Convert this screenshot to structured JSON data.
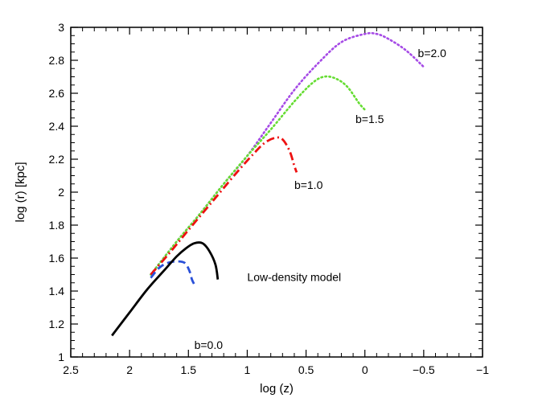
{
  "chart_data": {
    "type": "line",
    "title": "",
    "xlabel": "log (z)",
    "ylabel": "log (r) [kpc]",
    "xlim": [
      2.5,
      -1
    ],
    "ylim": [
      1,
      3
    ],
    "x_reversed": true,
    "x_ticks": [
      2.5,
      2,
      1.5,
      1,
      0.5,
      0,
      -0.5,
      -1
    ],
    "x_tick_labels": [
      "2.5",
      "2",
      "1.5",
      "1",
      "0.5",
      "0",
      "−0.5",
      "−1"
    ],
    "y_ticks": [
      1,
      1.2,
      1.4,
      1.6,
      1.8,
      2,
      2.2,
      2.4,
      2.6,
      2.8,
      3
    ],
    "y_tick_labels": [
      "1",
      "1.2",
      "1.4",
      "1.6",
      "1.8",
      "2",
      "2.2",
      "2.4",
      "2.6",
      "2.8",
      "3"
    ],
    "grid": false,
    "series": [
      {
        "name": "Low-density model",
        "style": "solid",
        "color": "#000000",
        "points": [
          [
            2.15,
            1.13
          ],
          [
            2.0,
            1.27
          ],
          [
            1.85,
            1.41
          ],
          [
            1.7,
            1.53
          ],
          [
            1.6,
            1.61
          ],
          [
            1.52,
            1.66
          ],
          [
            1.45,
            1.69
          ],
          [
            1.38,
            1.69
          ],
          [
            1.32,
            1.64
          ],
          [
            1.27,
            1.56
          ],
          [
            1.25,
            1.47
          ]
        ]
      },
      {
        "name": "b=0.0",
        "style": "dashed",
        "color": "#2a50d8",
        "points": [
          [
            1.82,
            1.48
          ],
          [
            1.75,
            1.54
          ],
          [
            1.68,
            1.57
          ],
          [
            1.6,
            1.58
          ],
          [
            1.53,
            1.57
          ],
          [
            1.49,
            1.52
          ],
          [
            1.47,
            1.47
          ],
          [
            1.45,
            1.44
          ]
        ]
      },
      {
        "name": "b=1.0",
        "style": "dashdot",
        "color": "#ee1111",
        "points": [
          [
            1.82,
            1.5
          ],
          [
            1.65,
            1.64
          ],
          [
            1.5,
            1.77
          ],
          [
            1.3,
            1.94
          ],
          [
            1.1,
            2.11
          ],
          [
            0.95,
            2.23
          ],
          [
            0.85,
            2.3
          ],
          [
            0.76,
            2.33
          ],
          [
            0.7,
            2.32
          ],
          [
            0.64,
            2.25
          ],
          [
            0.6,
            2.16
          ],
          [
            0.58,
            2.12
          ]
        ]
      },
      {
        "name": "b=1.5",
        "style": "dotted",
        "color": "#66dd33",
        "points": [
          [
            1.82,
            1.5
          ],
          [
            1.6,
            1.7
          ],
          [
            1.4,
            1.87
          ],
          [
            1.2,
            2.05
          ],
          [
            1.0,
            2.22
          ],
          [
            0.8,
            2.38
          ],
          [
            0.6,
            2.55
          ],
          [
            0.45,
            2.66
          ],
          [
            0.35,
            2.7
          ],
          [
            0.25,
            2.69
          ],
          [
            0.15,
            2.64
          ],
          [
            0.05,
            2.54
          ],
          [
            0.0,
            2.5
          ]
        ]
      },
      {
        "name": "b=2.0",
        "style": "dotted",
        "color": "#a64be6",
        "points": [
          [
            1.82,
            1.5
          ],
          [
            1.6,
            1.7
          ],
          [
            1.4,
            1.87
          ],
          [
            1.2,
            2.05
          ],
          [
            1.0,
            2.22
          ],
          [
            0.8,
            2.42
          ],
          [
            0.6,
            2.62
          ],
          [
            0.4,
            2.78
          ],
          [
            0.2,
            2.91
          ],
          [
            0.0,
            2.96
          ],
          [
            -0.1,
            2.96
          ],
          [
            -0.2,
            2.93
          ],
          [
            -0.35,
            2.86
          ],
          [
            -0.5,
            2.76
          ]
        ]
      }
    ],
    "annotations": [
      {
        "text": "Low-density model",
        "x": 1.0,
        "y": 1.46
      },
      {
        "text": "b=0.0",
        "x": 1.45,
        "y": 1.05
      },
      {
        "text": "b=1.0",
        "x": 0.6,
        "y": 2.02
      },
      {
        "text": "b=1.5",
        "x": 0.08,
        "y": 2.42
      },
      {
        "text": "b=2.0",
        "x": -0.45,
        "y": 2.82
      }
    ]
  }
}
